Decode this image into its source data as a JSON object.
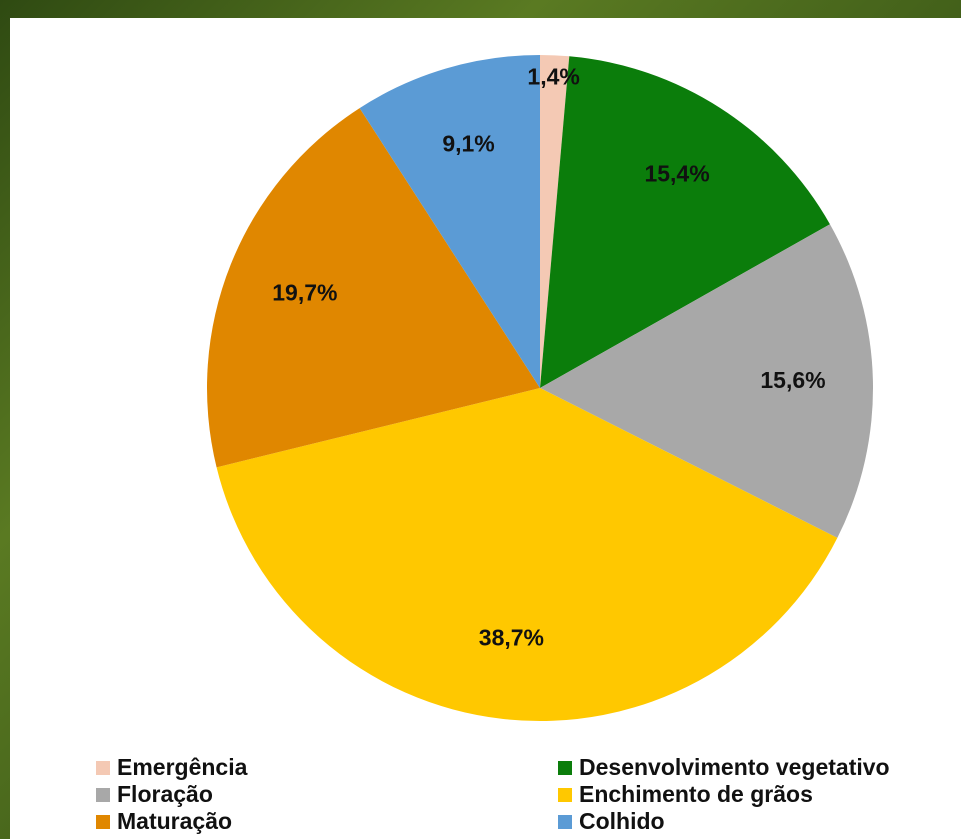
{
  "chart_data": {
    "type": "pie",
    "categories": [
      "Emergência",
      "Desenvolvimento vegetativo",
      "Floração",
      "Enchimento de grãos",
      "Maturação",
      "Colhido"
    ],
    "values": [
      1.4,
      15.4,
      15.6,
      38.7,
      19.7,
      9.1
    ],
    "value_labels": [
      "1,4%",
      "15,4%",
      "15,6%",
      "38,7%",
      "19,7%",
      "9,1%"
    ],
    "colors": [
      "#f4c9b4",
      "#0b7d0b",
      "#a8a8a8",
      "#ffc800",
      "#e08700",
      "#5b9bd5"
    ]
  }
}
